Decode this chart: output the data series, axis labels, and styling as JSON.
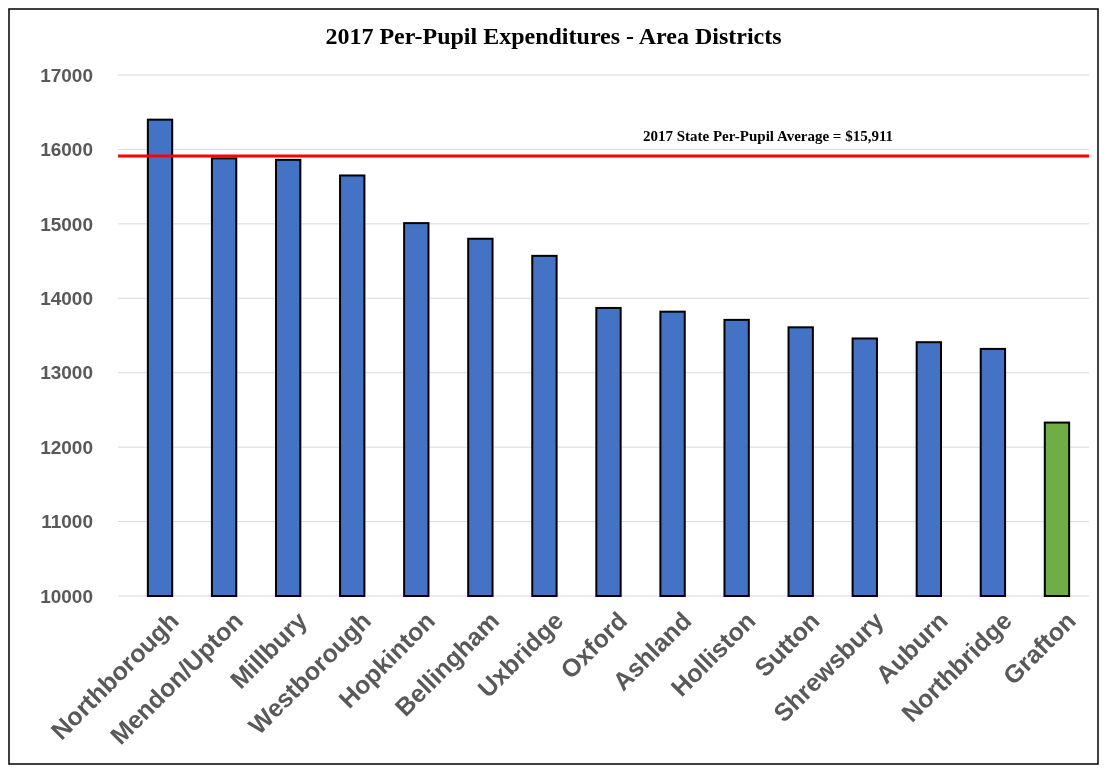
{
  "chart_data": {
    "type": "bar",
    "title": "2017 Per-Pupil Expenditures - Area Districts",
    "categories": [
      "Northborough",
      "Mendon/Upton",
      "Millbury",
      "Westborough",
      "Hopkinton",
      "Bellingham",
      "Uxbridge",
      "Oxford",
      "Ashland",
      "Holliston",
      "Sutton",
      "Shrewsbury",
      "Auburn",
      "Northbridge",
      "Grafton"
    ],
    "values": [
      16400,
      15880,
      15860,
      15650,
      15010,
      14800,
      14570,
      13870,
      13820,
      13710,
      13610,
      13460,
      13410,
      13320,
      12330
    ],
    "colors": [
      "#4472c4",
      "#4472c4",
      "#4472c4",
      "#4472c4",
      "#4472c4",
      "#4472c4",
      "#4472c4",
      "#4472c4",
      "#4472c4",
      "#4472c4",
      "#4472c4",
      "#4472c4",
      "#4472c4",
      "#4472c4",
      "#70ad47"
    ],
    "ylim": [
      10000,
      17000
    ],
    "yticks": [
      10000,
      11000,
      12000,
      13000,
      14000,
      15000,
      16000,
      17000
    ],
    "grid": "y",
    "ref_lines": [
      {
        "axis": "y",
        "value": 15911,
        "label": "2017 State Per-Pupil Average = $15,911",
        "color": "#ff0000"
      }
    ]
  }
}
